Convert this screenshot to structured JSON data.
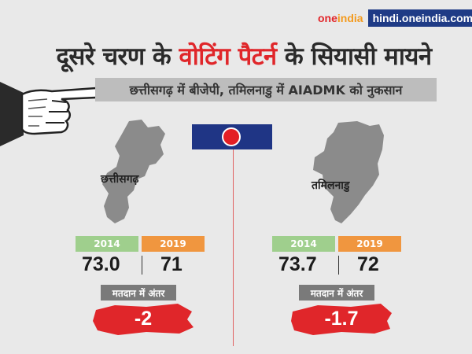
{
  "brand": {
    "logo_main": "one",
    "logo_accent": "india",
    "url": "hindi.oneindia.com"
  },
  "title": {
    "part1": "दूसरे चरण के ",
    "highlight": "वोटिंग पैटर्न",
    "part2": " के सियासी मायने"
  },
  "subtitle": "छत्तीसगढ़ में बीजेपी, तमिलनाडु में AIADMK को नुकसान",
  "states": [
    {
      "name": "छत्तीसगढ़",
      "year_a": "2014",
      "year_b": "2019",
      "value_a": "73.0",
      "value_b": "71",
      "diff_label": "मतदान में अंतर",
      "diff": "-2"
    },
    {
      "name": "तमिलनाडु",
      "year_a": "2014",
      "year_b": "2019",
      "value_a": "73.7",
      "value_b": "72",
      "diff_label": "मतदान में अंतर",
      "diff": "-1.7"
    }
  ],
  "colors": {
    "accent_red": "#e0262a",
    "navy": "#1f3585",
    "green": "#9fcf8d",
    "orange": "#f0963f",
    "gray_label": "#7a7a7a"
  },
  "icons": [
    "pointing-hand-icon",
    "red-dot-icon",
    "chhattisgarh-map",
    "tamil-nadu-map"
  ]
}
